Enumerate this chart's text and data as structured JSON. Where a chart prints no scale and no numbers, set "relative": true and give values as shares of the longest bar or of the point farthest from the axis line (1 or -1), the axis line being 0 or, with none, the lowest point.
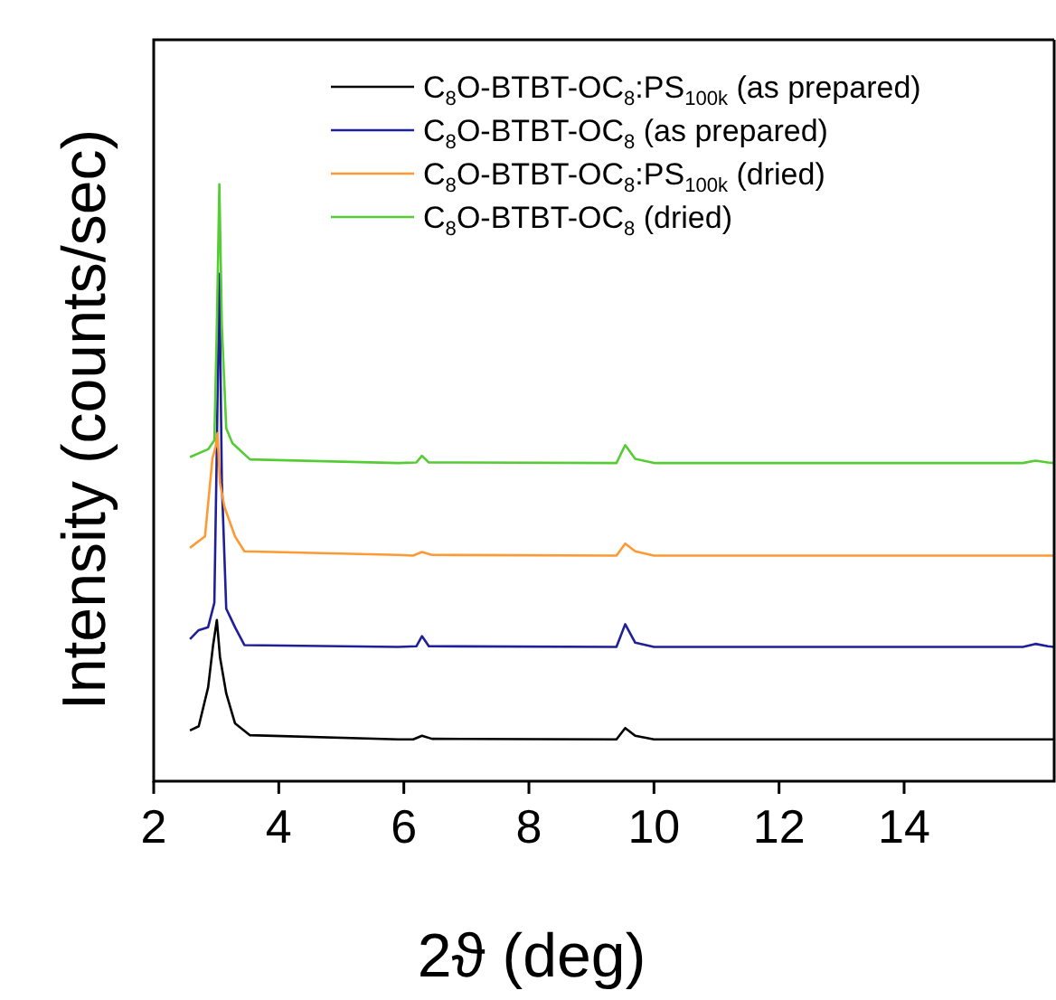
{
  "chart_data": {
    "type": "line",
    "relative": true,
    "xlabel": "2ϑ (deg)",
    "ylabel": "Intensity (counts/sec)",
    "xlim": [
      2,
      16.4
    ],
    "xticks": [
      2,
      4,
      6,
      8,
      10,
      12,
      14
    ],
    "grid": false,
    "legend": "top right",
    "marker": "none",
    "line_style": "solid",
    "series": [
      {
        "name": "C$_{8}$O-BTBT-OC$_{8}$:PS$_{100k}$ (as prepared)",
        "color": "#000000",
        "x": [
          2.58,
          2.72,
          2.87,
          2.95,
          3.01,
          3.06,
          3.16,
          3.3,
          3.54,
          5.91,
          6.15,
          6.29,
          6.45,
          9.4,
          9.54,
          9.7,
          10.0,
          16.4
        ],
        "values": [
          0.085,
          0.092,
          0.157,
          0.228,
          0.27,
          0.208,
          0.147,
          0.097,
          0.077,
          0.07,
          0.07,
          0.076,
          0.071,
          0.07,
          0.089,
          0.076,
          0.07,
          0.07
        ]
      },
      {
        "name": "C$_{8}$O-BTBT-OC$_{8}$ (as prepared)",
        "color": "#1f1f9a",
        "x": [
          2.58,
          2.72,
          2.87,
          2.97,
          3.01,
          3.05,
          3.09,
          3.16,
          3.3,
          3.45,
          5.91,
          6.2,
          6.29,
          6.4,
          9.4,
          9.54,
          9.7,
          10.0,
          15.9,
          16.1,
          16.3,
          16.4
        ],
        "values": [
          0.238,
          0.253,
          0.258,
          0.299,
          0.561,
          0.85,
          0.5,
          0.289,
          0.258,
          0.228,
          0.225,
          0.226,
          0.243,
          0.226,
          0.225,
          0.263,
          0.232,
          0.225,
          0.225,
          0.23,
          0.226,
          0.225
        ]
      },
      {
        "name": "C$_{8}$O-BTBT-OC$_{8}$:PS$_{100k}$ (dried)",
        "color": "#ff9933",
        "x": [
          2.58,
          2.82,
          2.94,
          2.99,
          3.02,
          3.06,
          3.13,
          3.3,
          3.45,
          5.91,
          6.15,
          6.29,
          6.45,
          9.4,
          9.54,
          9.7,
          10.0,
          16.4
        ],
        "values": [
          0.391,
          0.41,
          0.541,
          0.56,
          0.583,
          0.5,
          0.46,
          0.41,
          0.385,
          0.379,
          0.378,
          0.384,
          0.379,
          0.378,
          0.398,
          0.385,
          0.378,
          0.378
        ]
      },
      {
        "name": "C$_{8}$O-BTBT-OC$_{8}$ (dried)",
        "color": "#55cc33",
        "x": [
          2.58,
          2.87,
          2.97,
          3.01,
          3.05,
          3.09,
          3.16,
          3.26,
          3.54,
          5.91,
          6.2,
          6.29,
          6.4,
          9.4,
          9.54,
          9.7,
          10.0,
          15.9,
          16.1,
          16.3,
          16.4
        ],
        "values": [
          0.543,
          0.556,
          0.571,
          0.763,
          1,
          0.763,
          0.591,
          0.566,
          0.539,
          0.533,
          0.534,
          0.545,
          0.534,
          0.533,
          0.563,
          0.54,
          0.533,
          0.533,
          0.537,
          0.534,
          0.533
        ]
      }
    ]
  }
}
